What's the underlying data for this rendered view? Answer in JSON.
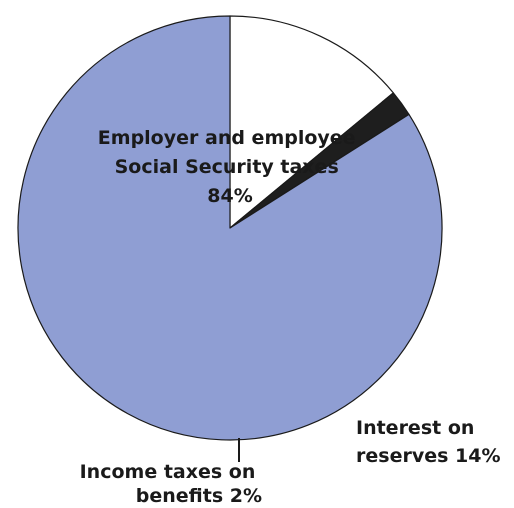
{
  "chart_data": {
    "type": "pie",
    "slices": [
      {
        "label_lines": [
          "Employer and employee",
          "Social Security taxes",
          "84%"
        ],
        "value": 84,
        "color": "#8f9ed3"
      },
      {
        "label_lines": [
          "Interest on",
          "reserves 14%"
        ],
        "value": 14,
        "color": "#ffffff"
      },
      {
        "label_lines": [
          "Income taxes on",
          "benefits 2%"
        ],
        "value": 2,
        "color": "#1e1e1e"
      }
    ],
    "start": "12 o'clock",
    "direction": "clockwise",
    "order": [
      "Interest on reserves",
      "Income taxes on benefits",
      "Employer and employee Social Security taxes"
    ]
  }
}
